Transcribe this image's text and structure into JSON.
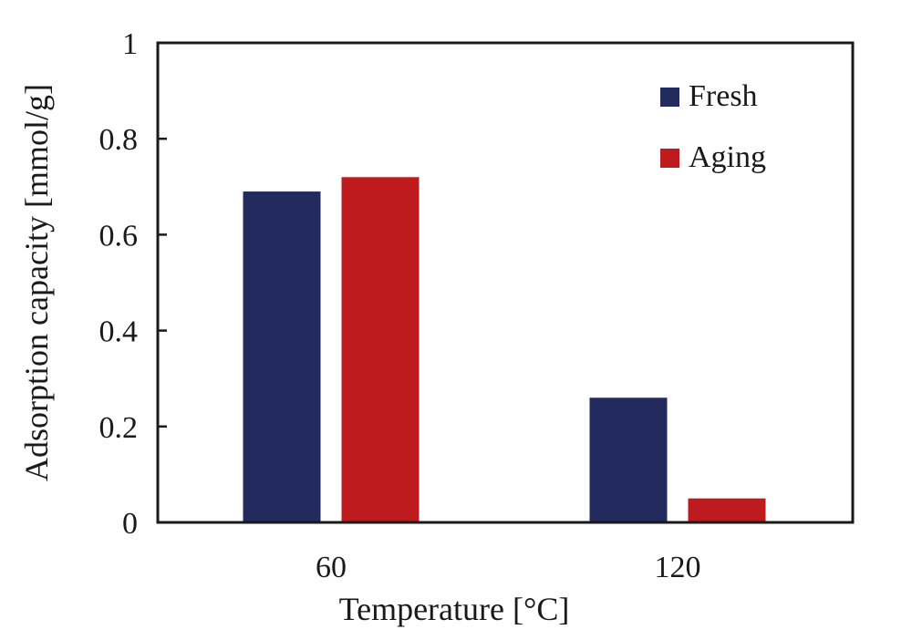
{
  "chart_data": {
    "type": "bar",
    "title": "",
    "xlabel": "Temperature [°C]",
    "ylabel": "Adsorption capacity [mmol/g]",
    "categories": [
      "60",
      "120"
    ],
    "series": [
      {
        "name": "Fresh",
        "values": [
          0.69,
          0.26
        ],
        "color": "#232b5e"
      },
      {
        "name": "Aging",
        "values": [
          0.72,
          0.05
        ],
        "color": "#bd1b1e"
      }
    ],
    "ylim": [
      0,
      1
    ],
    "yticks": [
      "0",
      "0.2",
      "0.4",
      "0.6",
      "0.8",
      "1"
    ],
    "grid": false,
    "legend_position": "top-right"
  }
}
